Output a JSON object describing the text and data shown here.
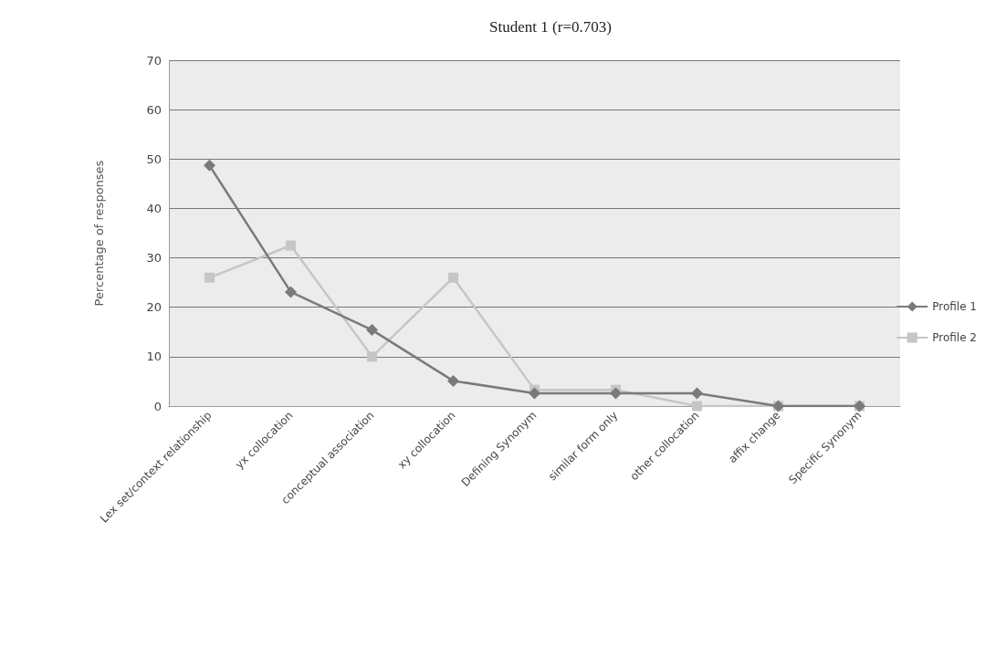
{
  "chart_data": {
    "type": "line",
    "title": "Student 1 (r=0.703)",
    "ylabel": "Percentage of responses",
    "categories": [
      "Lex set/context relationship",
      "yx collocation",
      "conceptual association",
      "xy collocation",
      "Defining Synonym",
      "similar form only",
      "other collocation",
      "affix change",
      "Specific Synonym"
    ],
    "series": [
      {
        "name": "Profile 1",
        "color": "#7a7a7a",
        "marker": "diamond",
        "values": [
          48.7,
          23.1,
          15.4,
          5.1,
          2.6,
          2.6,
          2.6,
          0,
          0
        ]
      },
      {
        "name": "Profile 2",
        "color": "#c6c6c6",
        "marker": "square",
        "values": [
          26,
          32.5,
          10,
          26,
          3.3,
          3.3,
          0,
          0,
          0
        ]
      }
    ],
    "ylim": [
      0,
      70
    ],
    "yticks": [
      0,
      10,
      20,
      30,
      40,
      50,
      60,
      70
    ],
    "grid": "y",
    "legend": "right"
  }
}
